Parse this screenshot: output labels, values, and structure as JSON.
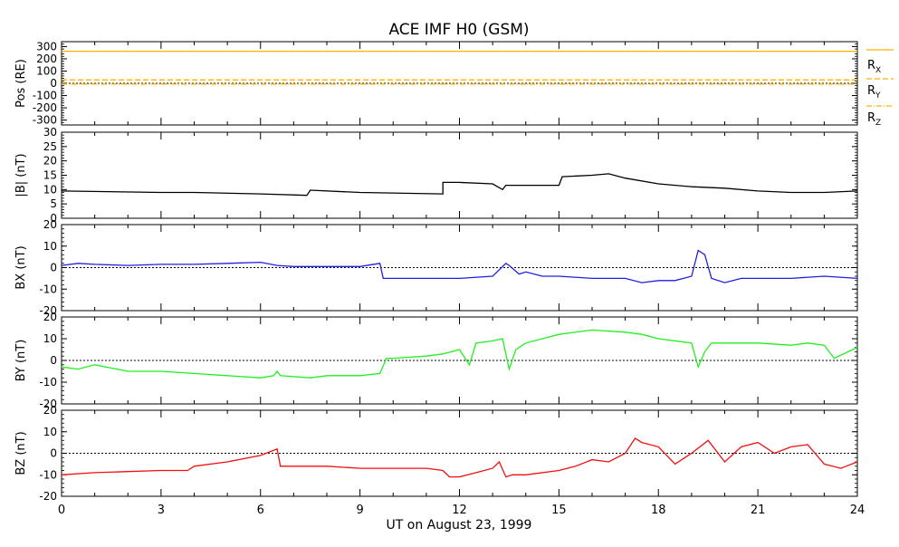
{
  "title": "ACE IMF H0 (GSM)",
  "xlabel": "UT on August 23, 1999",
  "x_ticks": [
    "0",
    "3",
    "6",
    "9",
    "12",
    "15",
    "18",
    "21",
    "24"
  ],
  "colors": {
    "rx": "#ffb000",
    "ry": "#ffb000",
    "rz": "#ffb000",
    "b": "#000000",
    "bx": "#2020e0",
    "by": "#20f020",
    "bz": "#f01010"
  },
  "chart_data": [
    {
      "type": "line",
      "panel": "pos",
      "ylabel": "Pos (RE)",
      "ylim": [
        -340,
        340
      ],
      "y_ticks": [
        300,
        200,
        100,
        0,
        -100,
        -200,
        -300
      ],
      "zero_line": true,
      "series": [
        {
          "name": "RX",
          "x": [
            0,
            24
          ],
          "values": [
            262,
            262
          ]
        },
        {
          "name": "RY",
          "x": [
            0,
            24
          ],
          "values": [
            28,
            28
          ]
        },
        {
          "name": "RZ",
          "x": [
            0,
            24
          ],
          "values": [
            -6,
            -6
          ]
        }
      ]
    },
    {
      "type": "line",
      "panel": "b",
      "ylabel": "|B| (nT)",
      "ylim": [
        0,
        30
      ],
      "y_ticks": [
        30,
        25,
        20,
        15,
        10,
        5,
        0
      ],
      "zero_line": false,
      "series": [
        {
          "x": [
            0,
            3,
            4,
            6,
            7.4,
            7.5,
            9,
            11.5,
            11.5,
            12,
            13,
            13.3,
            13.4,
            14,
            15,
            15.1,
            16,
            16.5,
            17,
            18,
            19,
            20,
            21,
            22,
            23,
            24
          ],
          "values": [
            9.5,
            9,
            9,
            8.5,
            8,
            9.8,
            9,
            8.5,
            12.5,
            12.5,
            12,
            10,
            11.5,
            11.5,
            11.5,
            14.5,
            15,
            15.5,
            14,
            12,
            11,
            10.5,
            9.5,
            9,
            9,
            9.5
          ]
        }
      ]
    },
    {
      "type": "line",
      "panel": "bx",
      "ylabel": "BX (nT)",
      "ylim": [
        -20,
        20
      ],
      "y_ticks": [
        20,
        10,
        0,
        -10,
        -20
      ],
      "zero_line": true,
      "series": [
        {
          "x": [
            0,
            0.5,
            1,
            2,
            3,
            4,
            5,
            6,
            6.5,
            7,
            8,
            9,
            9.6,
            9.7,
            10,
            11,
            12,
            13,
            13.4,
            13.5,
            13.8,
            14,
            14.5,
            15,
            16,
            17,
            17.5,
            18,
            18.5,
            19,
            19.2,
            19.4,
            19.6,
            20,
            20.5,
            21,
            22,
            23,
            24
          ],
          "values": [
            1,
            2,
            1.5,
            1,
            1.5,
            1.5,
            2,
            2.5,
            1,
            0.5,
            0.5,
            0.5,
            2,
            -5,
            -5,
            -5,
            -5,
            -4,
            2,
            1,
            -3,
            -2,
            -4,
            -4,
            -5,
            -5,
            -7,
            -6,
            -6,
            -4,
            8,
            6,
            -5,
            -7,
            -5,
            -5,
            -5,
            -4,
            -5
          ]
        }
      ]
    },
    {
      "type": "line",
      "panel": "by",
      "ylabel": "BY (nT)",
      "ylim": [
        -20,
        20
      ],
      "y_ticks": [
        20,
        10,
        0,
        -10,
        -20
      ],
      "zero_line": true,
      "series": [
        {
          "x": [
            0,
            0.5,
            1,
            2,
            3,
            4,
            5,
            6,
            6.4,
            6.5,
            6.6,
            7.5,
            8,
            9,
            9.6,
            9.8,
            10,
            11,
            11.5,
            12,
            12.3,
            12.5,
            13,
            13.3,
            13.5,
            13.7,
            14,
            15,
            16,
            17,
            17.5,
            18,
            19,
            19.2,
            19.4,
            19.6,
            20,
            21,
            22,
            22.5,
            23,
            23.3,
            24
          ],
          "values": [
            -3,
            -4,
            -2,
            -5,
            -5,
            -6,
            -7,
            -8,
            -7,
            -5,
            -7,
            -8,
            -7,
            -7,
            -6,
            1,
            1,
            2,
            3,
            5,
            -2,
            8,
            9,
            10,
            -4,
            5,
            8,
            12,
            14,
            13,
            12,
            10,
            8,
            -3,
            4,
            8,
            8,
            8,
            7,
            8,
            7,
            1,
            6
          ]
        }
      ]
    },
    {
      "type": "line",
      "panel": "bz",
      "ylabel": "BZ (nT)",
      "ylim": [
        -20,
        20
      ],
      "y_ticks": [
        20,
        10,
        0,
        -10,
        -20
      ],
      "zero_line": true,
      "series": [
        {
          "x": [
            0,
            1,
            2,
            3,
            3.8,
            4,
            5,
            6,
            6.5,
            6.6,
            7,
            8,
            9,
            10,
            11,
            11.5,
            11.7,
            12,
            12.5,
            13,
            13.2,
            13.4,
            13.6,
            14,
            15,
            15.5,
            16,
            16.5,
            17,
            17.3,
            17.5,
            18,
            18.5,
            19,
            19.5,
            20,
            20.5,
            21,
            21.5,
            22,
            22.5,
            23,
            23.5,
            24
          ],
          "values": [
            -10,
            -9,
            -8.5,
            -8,
            -8,
            -6,
            -4,
            -1,
            2,
            -6,
            -6,
            -6,
            -7,
            -7,
            -7,
            -8,
            -11,
            -11,
            -9,
            -7,
            -4,
            -11,
            -10,
            -10,
            -8,
            -6,
            -3,
            -4,
            0,
            7,
            5,
            3,
            -5,
            0,
            6,
            -4,
            3,
            5,
            0,
            3,
            4,
            -5,
            -7,
            -4
          ]
        }
      ]
    }
  ],
  "legend": {
    "rx_label": "R",
    "rx_sub": "X",
    "ry_label": "R",
    "ry_sub": "Y",
    "rz_label": "R",
    "rz_sub": "Z"
  }
}
